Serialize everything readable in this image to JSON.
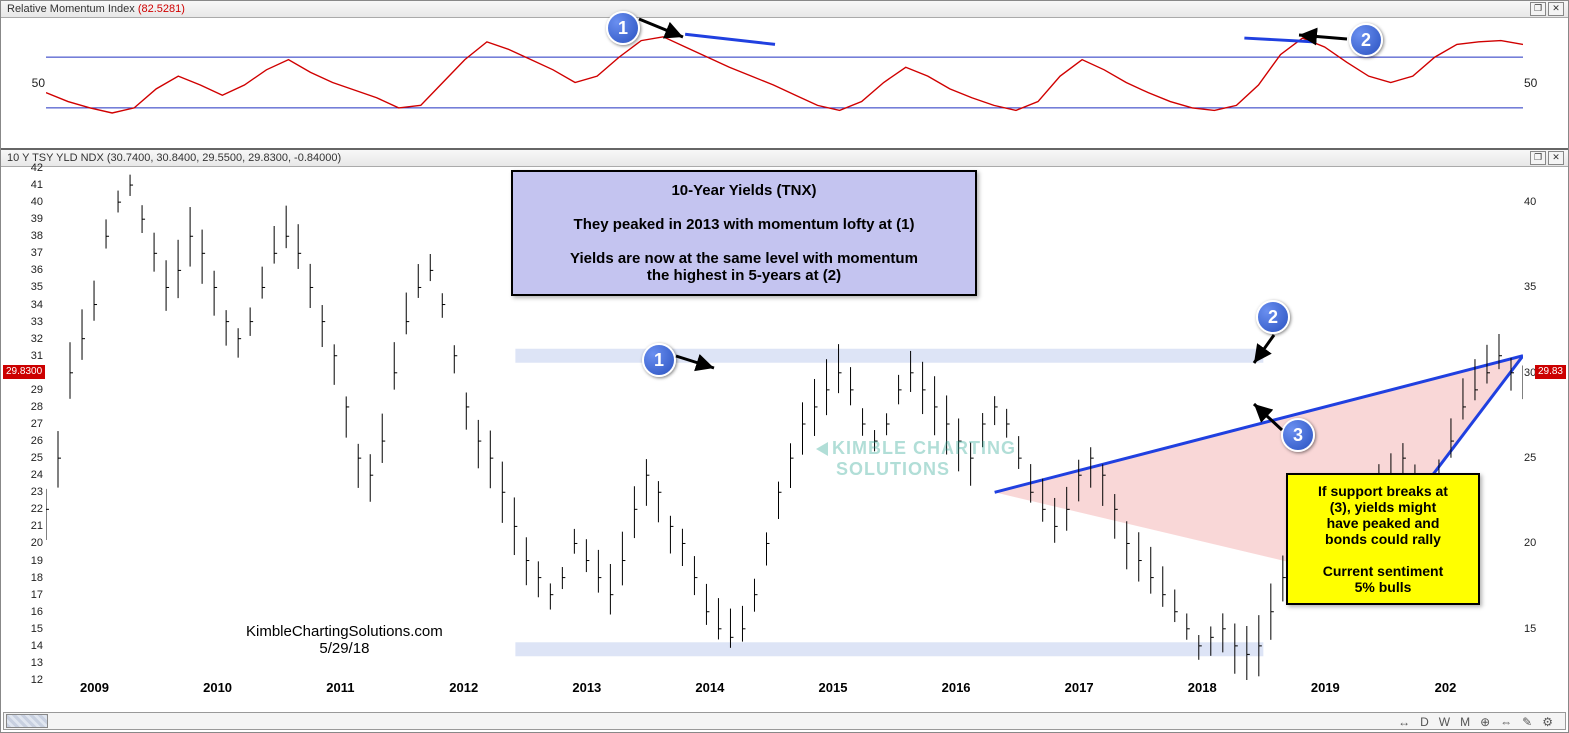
{
  "top_panel": {
    "title": "Relative Momentum Index",
    "value": "(82.5281)",
    "ytick_label": "50",
    "line_color": "#d00000",
    "guide_color": "#2030c0",
    "ylim": [
      0,
      100
    ],
    "upper_band": 70,
    "lower_band": 30,
    "series_y": [
      42,
      35,
      30,
      26,
      30,
      45,
      55,
      48,
      40,
      48,
      60,
      68,
      58,
      50,
      44,
      38,
      30,
      32,
      50,
      68,
      82,
      76,
      68,
      60,
      50,
      55,
      70,
      83,
      86,
      78,
      70,
      62,
      55,
      48,
      40,
      32,
      28,
      35,
      50,
      62,
      55,
      45,
      38,
      32,
      28,
      35,
      55,
      68,
      60,
      50,
      42,
      35,
      30,
      28,
      32,
      48,
      72,
      85,
      78,
      66,
      55,
      50,
      55,
      70,
      80,
      82,
      83,
      80
    ]
  },
  "bottom_panel": {
    "title": "10 Y TSY YLD NDX",
    "ohlc": "(30.7400, 30.8400, 29.5500, 29.8300, -0.84000)",
    "price_marker_left": "29.8300",
    "price_marker_right": "29.83",
    "ylim": [
      12,
      42
    ],
    "yticks_left": [
      12,
      13,
      14,
      15,
      16,
      17,
      18,
      19,
      20,
      21,
      22,
      23,
      24,
      25,
      26,
      27,
      28,
      29,
      30,
      31,
      32,
      33,
      34,
      35,
      36,
      37,
      38,
      39,
      40,
      41,
      42
    ],
    "yticks_right": [
      15,
      20,
      25,
      30,
      35,
      40
    ],
    "xlabels": [
      "2009",
      "2010",
      "2011",
      "2012",
      "2013",
      "2014",
      "2015",
      "2016",
      "2017",
      "2018",
      "2019",
      "202"
    ],
    "bar_color": "#000000",
    "wedge_fill": "#f6c6c6",
    "wedge_edge": "#2040e0",
    "hband_color": "#dde4f6",
    "hband_upper": 31,
    "hband_lower": 13.8,
    "closes": [
      22,
      25,
      30,
      32,
      34,
      38,
      40,
      41,
      39,
      37,
      35,
      36,
      38,
      37,
      35,
      33,
      32,
      33,
      35,
      37,
      38,
      37,
      35,
      33,
      31,
      28,
      25,
      24,
      26,
      30,
      33,
      35,
      36,
      34,
      31,
      28,
      26,
      25,
      23,
      21,
      19,
      18,
      17,
      18,
      20,
      19,
      18,
      17,
      19,
      22,
      24,
      23,
      21,
      20,
      18,
      16,
      15,
      14.5,
      15,
      17,
      20,
      23,
      25,
      27,
      28,
      29,
      30,
      29,
      27,
      26,
      27,
      29,
      30,
      29,
      28,
      27,
      26,
      25,
      27,
      28,
      27,
      25,
      23,
      22,
      21,
      22,
      24,
      25,
      24,
      22,
      20,
      19,
      18,
      17,
      16,
      15,
      14,
      14.5,
      15,
      14,
      13.5,
      14,
      16,
      18,
      20,
      22,
      23,
      22,
      21,
      20,
      21,
      23,
      24,
      25,
      24,
      23,
      24,
      26,
      28,
      29,
      30,
      31,
      30,
      29.8
    ]
  },
  "annotations": {
    "blue_box_lines": [
      "10-Year Yields (TNX)",
      "",
      "They peaked in 2013 with momentum lofty at (1)",
      "",
      "Yields are now at the same level with momentum",
      "the highest in  5-years at (2)"
    ],
    "yellow_box_lines": [
      "If support breaks at",
      "(3), yields might",
      "have peaked and",
      "bonds could rally",
      "",
      "Current sentiment",
      "5% bulls"
    ],
    "attribution_line1": "KimbleChartingSolutions.com",
    "attribution_line2": "5/29/18",
    "watermark_line1": "KIMBLE CHARTING",
    "watermark_line2": "SOLUTIONS",
    "badge1": "1",
    "badge2": "2",
    "badge3": "3"
  },
  "toolbar": {
    "items": [
      "↔",
      "D",
      "W",
      "M",
      "⊕",
      "⇔",
      "✎",
      "⚙"
    ]
  }
}
